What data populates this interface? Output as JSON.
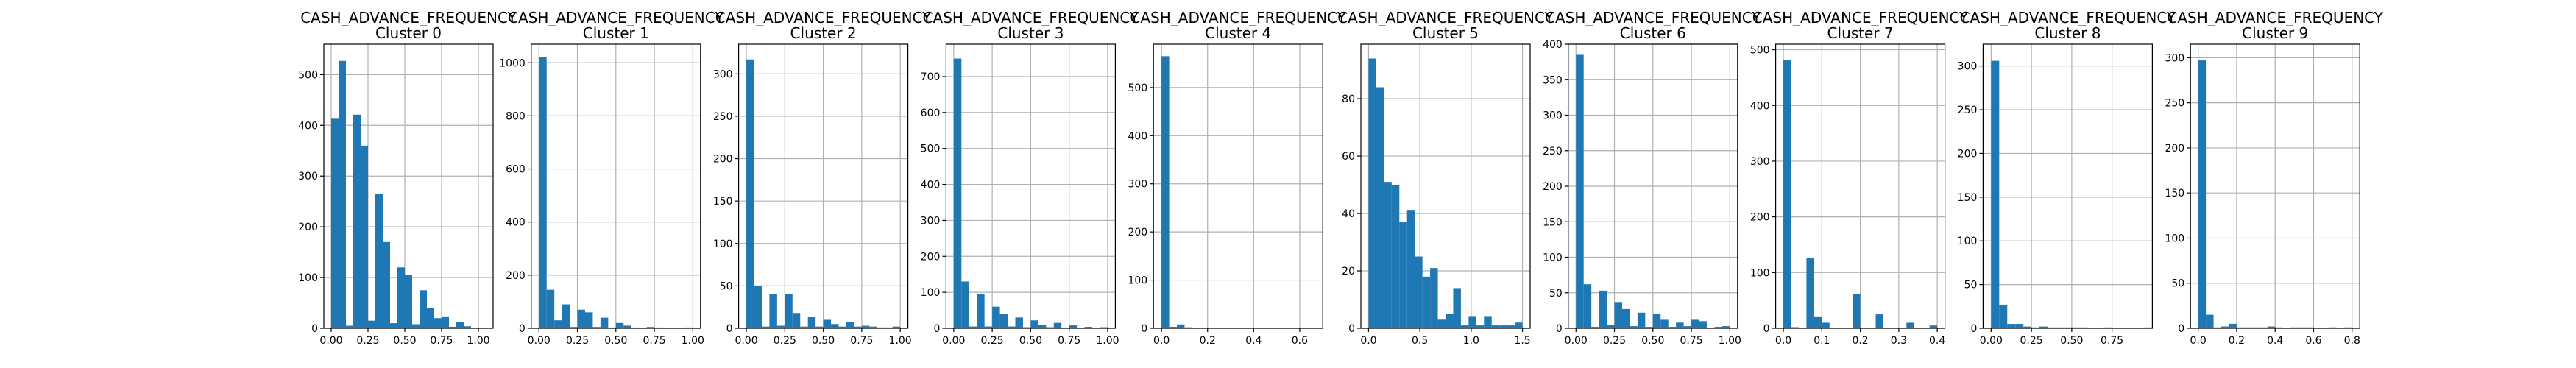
{
  "figure": {
    "bar_color": "#1f77b4",
    "grid_color": "#b0b0b0",
    "background": "#ffffff"
  },
  "chart_data": [
    {
      "type": "bar",
      "title": "CASH_ADVANCE_FREQUENCY",
      "subtitle": "Cluster 0",
      "grid": true,
      "xlabel": "",
      "ylabel": "",
      "xlim": [
        -0.05,
        1.1
      ],
      "ylim": [
        0,
        560
      ],
      "xticks": [
        0.0,
        0.25,
        0.5,
        0.75,
        1.0
      ],
      "xtick_labels": [
        "0.00",
        "0.25",
        "0.50",
        "0.75",
        "1.00"
      ],
      "yticks": [
        0,
        100,
        200,
        300,
        400,
        500
      ],
      "ytick_labels": [
        "0",
        "100",
        "200",
        "300",
        "400",
        "500"
      ],
      "bins": {
        "start": 0.0,
        "width": 0.05
      },
      "values": [
        413,
        527,
        5,
        421,
        360,
        15,
        265,
        170,
        10,
        120,
        105,
        8,
        75,
        40,
        20,
        22,
        3,
        12,
        4,
        0
      ]
    },
    {
      "type": "bar",
      "title": "CASH_ADVANCE_FREQUENCY",
      "subtitle": "Cluster 1",
      "grid": true,
      "xlabel": "",
      "ylabel": "",
      "xlim": [
        -0.05,
        1.05
      ],
      "ylim": [
        0,
        1070
      ],
      "xticks": [
        0.0,
        0.25,
        0.5,
        0.75,
        1.0
      ],
      "xtick_labels": [
        "0.00",
        "0.25",
        "0.50",
        "0.75",
        "1.00"
      ],
      "yticks": [
        0,
        200,
        400,
        600,
        800,
        1000
      ],
      "ytick_labels": [
        "0",
        "200",
        "400",
        "600",
        "800",
        "1000"
      ],
      "bins": {
        "start": 0.0,
        "width": 0.05
      },
      "values": [
        1020,
        145,
        30,
        90,
        5,
        70,
        60,
        5,
        40,
        3,
        20,
        10,
        3,
        2,
        5,
        3,
        1,
        1,
        2,
        3
      ]
    },
    {
      "type": "bar",
      "title": "CASH_ADVANCE_FREQUENCY",
      "subtitle": "Cluster 2",
      "grid": true,
      "xlabel": "",
      "ylabel": "",
      "xlim": [
        -0.05,
        1.05
      ],
      "ylim": [
        0,
        335
      ],
      "xticks": [
        0.0,
        0.25,
        0.5,
        0.75,
        1.0
      ],
      "xtick_labels": [
        "0.00",
        "0.25",
        "0.50",
        "0.75",
        "1.00"
      ],
      "yticks": [
        0,
        50,
        100,
        150,
        200,
        250,
        300
      ],
      "ytick_labels": [
        "0",
        "50",
        "100",
        "150",
        "200",
        "250",
        "300"
      ],
      "bins": {
        "start": 0.0,
        "width": 0.05
      },
      "values": [
        317,
        50,
        2,
        40,
        3,
        40,
        18,
        2,
        13,
        2,
        10,
        5,
        2,
        7,
        2,
        3,
        2,
        1,
        1,
        2
      ]
    },
    {
      "type": "bar",
      "title": "CASH_ADVANCE_FREQUENCY",
      "subtitle": "Cluster 3",
      "grid": true,
      "xlabel": "",
      "ylabel": "",
      "xlim": [
        -0.05,
        1.05
      ],
      "ylim": [
        0,
        790
      ],
      "xticks": [
        0.0,
        0.25,
        0.5,
        0.75,
        1.0
      ],
      "xtick_labels": [
        "0.00",
        "0.25",
        "0.50",
        "0.75",
        "1.00"
      ],
      "yticks": [
        0,
        100,
        200,
        300,
        400,
        500,
        600,
        700
      ],
      "ytick_labels": [
        "0",
        "100",
        "200",
        "300",
        "400",
        "500",
        "600",
        "700"
      ],
      "bins": {
        "start": 0.0,
        "width": 0.05
      },
      "values": [
        750,
        130,
        5,
        95,
        5,
        60,
        40,
        5,
        30,
        3,
        22,
        10,
        3,
        15,
        2,
        8,
        1,
        4,
        1,
        3
      ]
    },
    {
      "type": "bar",
      "title": "CASH_ADVANCE_FREQUENCY",
      "subtitle": "Cluster 4",
      "grid": true,
      "xlabel": "",
      "ylabel": "",
      "xlim": [
        -0.035,
        0.7
      ],
      "ylim": [
        0,
        590
      ],
      "xticks": [
        0.0,
        0.2,
        0.4,
        0.6
      ],
      "xtick_labels": [
        "0.0",
        "0.2",
        "0.4",
        "0.6"
      ],
      "yticks": [
        0,
        100,
        200,
        300,
        400,
        500
      ],
      "ytick_labels": [
        "0",
        "100",
        "200",
        "300",
        "400",
        "500"
      ],
      "bins": {
        "start": 0.0,
        "width": 0.0333
      },
      "values": [
        565,
        3,
        8,
        2,
        1,
        1,
        1,
        0,
        1,
        0,
        0,
        0,
        0,
        0,
        0,
        0,
        0,
        0,
        0,
        1
      ]
    },
    {
      "type": "bar",
      "title": "CASH_ADVANCE_FREQUENCY",
      "subtitle": "Cluster 5",
      "grid": true,
      "xlabel": "",
      "ylabel": "",
      "xlim": [
        -0.075,
        1.575
      ],
      "ylim": [
        0,
        99
      ],
      "xticks": [
        0.0,
        0.5,
        1.0,
        1.5
      ],
      "xtick_labels": [
        "0.0",
        "0.5",
        "1.0",
        "1.5"
      ],
      "yticks": [
        0,
        20,
        40,
        60,
        80
      ],
      "ytick_labels": [
        "0",
        "20",
        "40",
        "60",
        "80"
      ],
      "bins": {
        "start": 0.0,
        "width": 0.075
      },
      "values": [
        94,
        84,
        51,
        50,
        37,
        41,
        25,
        18,
        21,
        3,
        5,
        14,
        1,
        4,
        1,
        4,
        1,
        1,
        1,
        2
      ]
    },
    {
      "type": "bar",
      "title": "CASH_ADVANCE_FREQUENCY",
      "subtitle": "Cluster 6",
      "grid": true,
      "xlabel": "",
      "ylabel": "",
      "xlim": [
        -0.05,
        1.05
      ],
      "ylim": [
        0,
        400
      ],
      "xticks": [
        0.0,
        0.25,
        0.5,
        0.75,
        1.0
      ],
      "xtick_labels": [
        "0.00",
        "0.25",
        "0.50",
        "0.75",
        "1.00"
      ],
      "yticks": [
        0,
        50,
        100,
        150,
        200,
        250,
        300,
        350,
        400
      ],
      "ytick_labels": [
        "0",
        "50",
        "100",
        "150",
        "200",
        "250",
        "300",
        "350",
        "400"
      ],
      "bins": {
        "start": 0.0,
        "width": 0.05
      },
      "values": [
        385,
        62,
        2,
        53,
        5,
        36,
        27,
        3,
        22,
        2,
        20,
        12,
        2,
        8,
        3,
        12,
        10,
        1,
        2,
        3
      ]
    },
    {
      "type": "bar",
      "title": "CASH_ADVANCE_FREQUENCY",
      "subtitle": "Cluster 7",
      "grid": true,
      "xlabel": "",
      "ylabel": "",
      "xlim": [
        -0.02,
        0.42
      ],
      "ylim": [
        0,
        510
      ],
      "xticks": [
        0.0,
        0.1,
        0.2,
        0.3,
        0.4
      ],
      "xtick_labels": [
        "0.0",
        "0.1",
        "0.2",
        "0.3",
        "0.4"
      ],
      "yticks": [
        0,
        100,
        200,
        300,
        400,
        500
      ],
      "ytick_labels": [
        "0",
        "100",
        "200",
        "300",
        "400",
        "500"
      ],
      "bins": {
        "start": 0.0,
        "width": 0.02
      },
      "values": [
        482,
        2,
        1,
        126,
        20,
        10,
        1,
        1,
        1,
        62,
        1,
        1,
        25,
        1,
        1,
        1,
        10,
        1,
        1,
        5
      ]
    },
    {
      "type": "bar",
      "title": "CASH_ADVANCE_FREQUENCY",
      "subtitle": "Cluster 8",
      "grid": true,
      "xlabel": "",
      "ylabel": "",
      "xlim": [
        -0.05,
        1.0
      ],
      "ylim": [
        0,
        325
      ],
      "xticks": [
        0.0,
        0.25,
        0.5,
        0.75
      ],
      "xtick_labels": [
        "0.00",
        "0.25",
        "0.50",
        "0.75"
      ],
      "yticks": [
        0,
        50,
        100,
        150,
        200,
        250,
        300
      ],
      "ytick_labels": [
        "0",
        "50",
        "100",
        "150",
        "200",
        "250",
        "300"
      ],
      "bins": {
        "start": 0.0,
        "width": 0.05
      },
      "values": [
        306,
        27,
        5,
        5,
        2,
        1,
        2,
        1,
        1,
        1,
        1,
        1,
        0,
        0,
        1,
        0,
        0,
        0,
        0,
        1
      ]
    },
    {
      "type": "bar",
      "title": "CASH_ADVANCE_FREQUENCY",
      "subtitle": "Cluster 9",
      "grid": true,
      "xlabel": "",
      "ylabel": "",
      "xlim": [
        -0.04,
        0.84
      ],
      "ylim": [
        0,
        315
      ],
      "xticks": [
        0.0,
        0.2,
        0.4,
        0.6,
        0.8
      ],
      "xtick_labels": [
        "0.0",
        "0.2",
        "0.4",
        "0.6",
        "0.8"
      ],
      "yticks": [
        0,
        50,
        100,
        150,
        200,
        250,
        300
      ],
      "ytick_labels": [
        "0",
        "50",
        "100",
        "150",
        "200",
        "250",
        "300"
      ],
      "bins": {
        "start": 0.0,
        "width": 0.04
      },
      "values": [
        297,
        15,
        1,
        2,
        5,
        1,
        1,
        1,
        1,
        2,
        1,
        0,
        1,
        1,
        1,
        0,
        0,
        1,
        0,
        1
      ]
    }
  ]
}
